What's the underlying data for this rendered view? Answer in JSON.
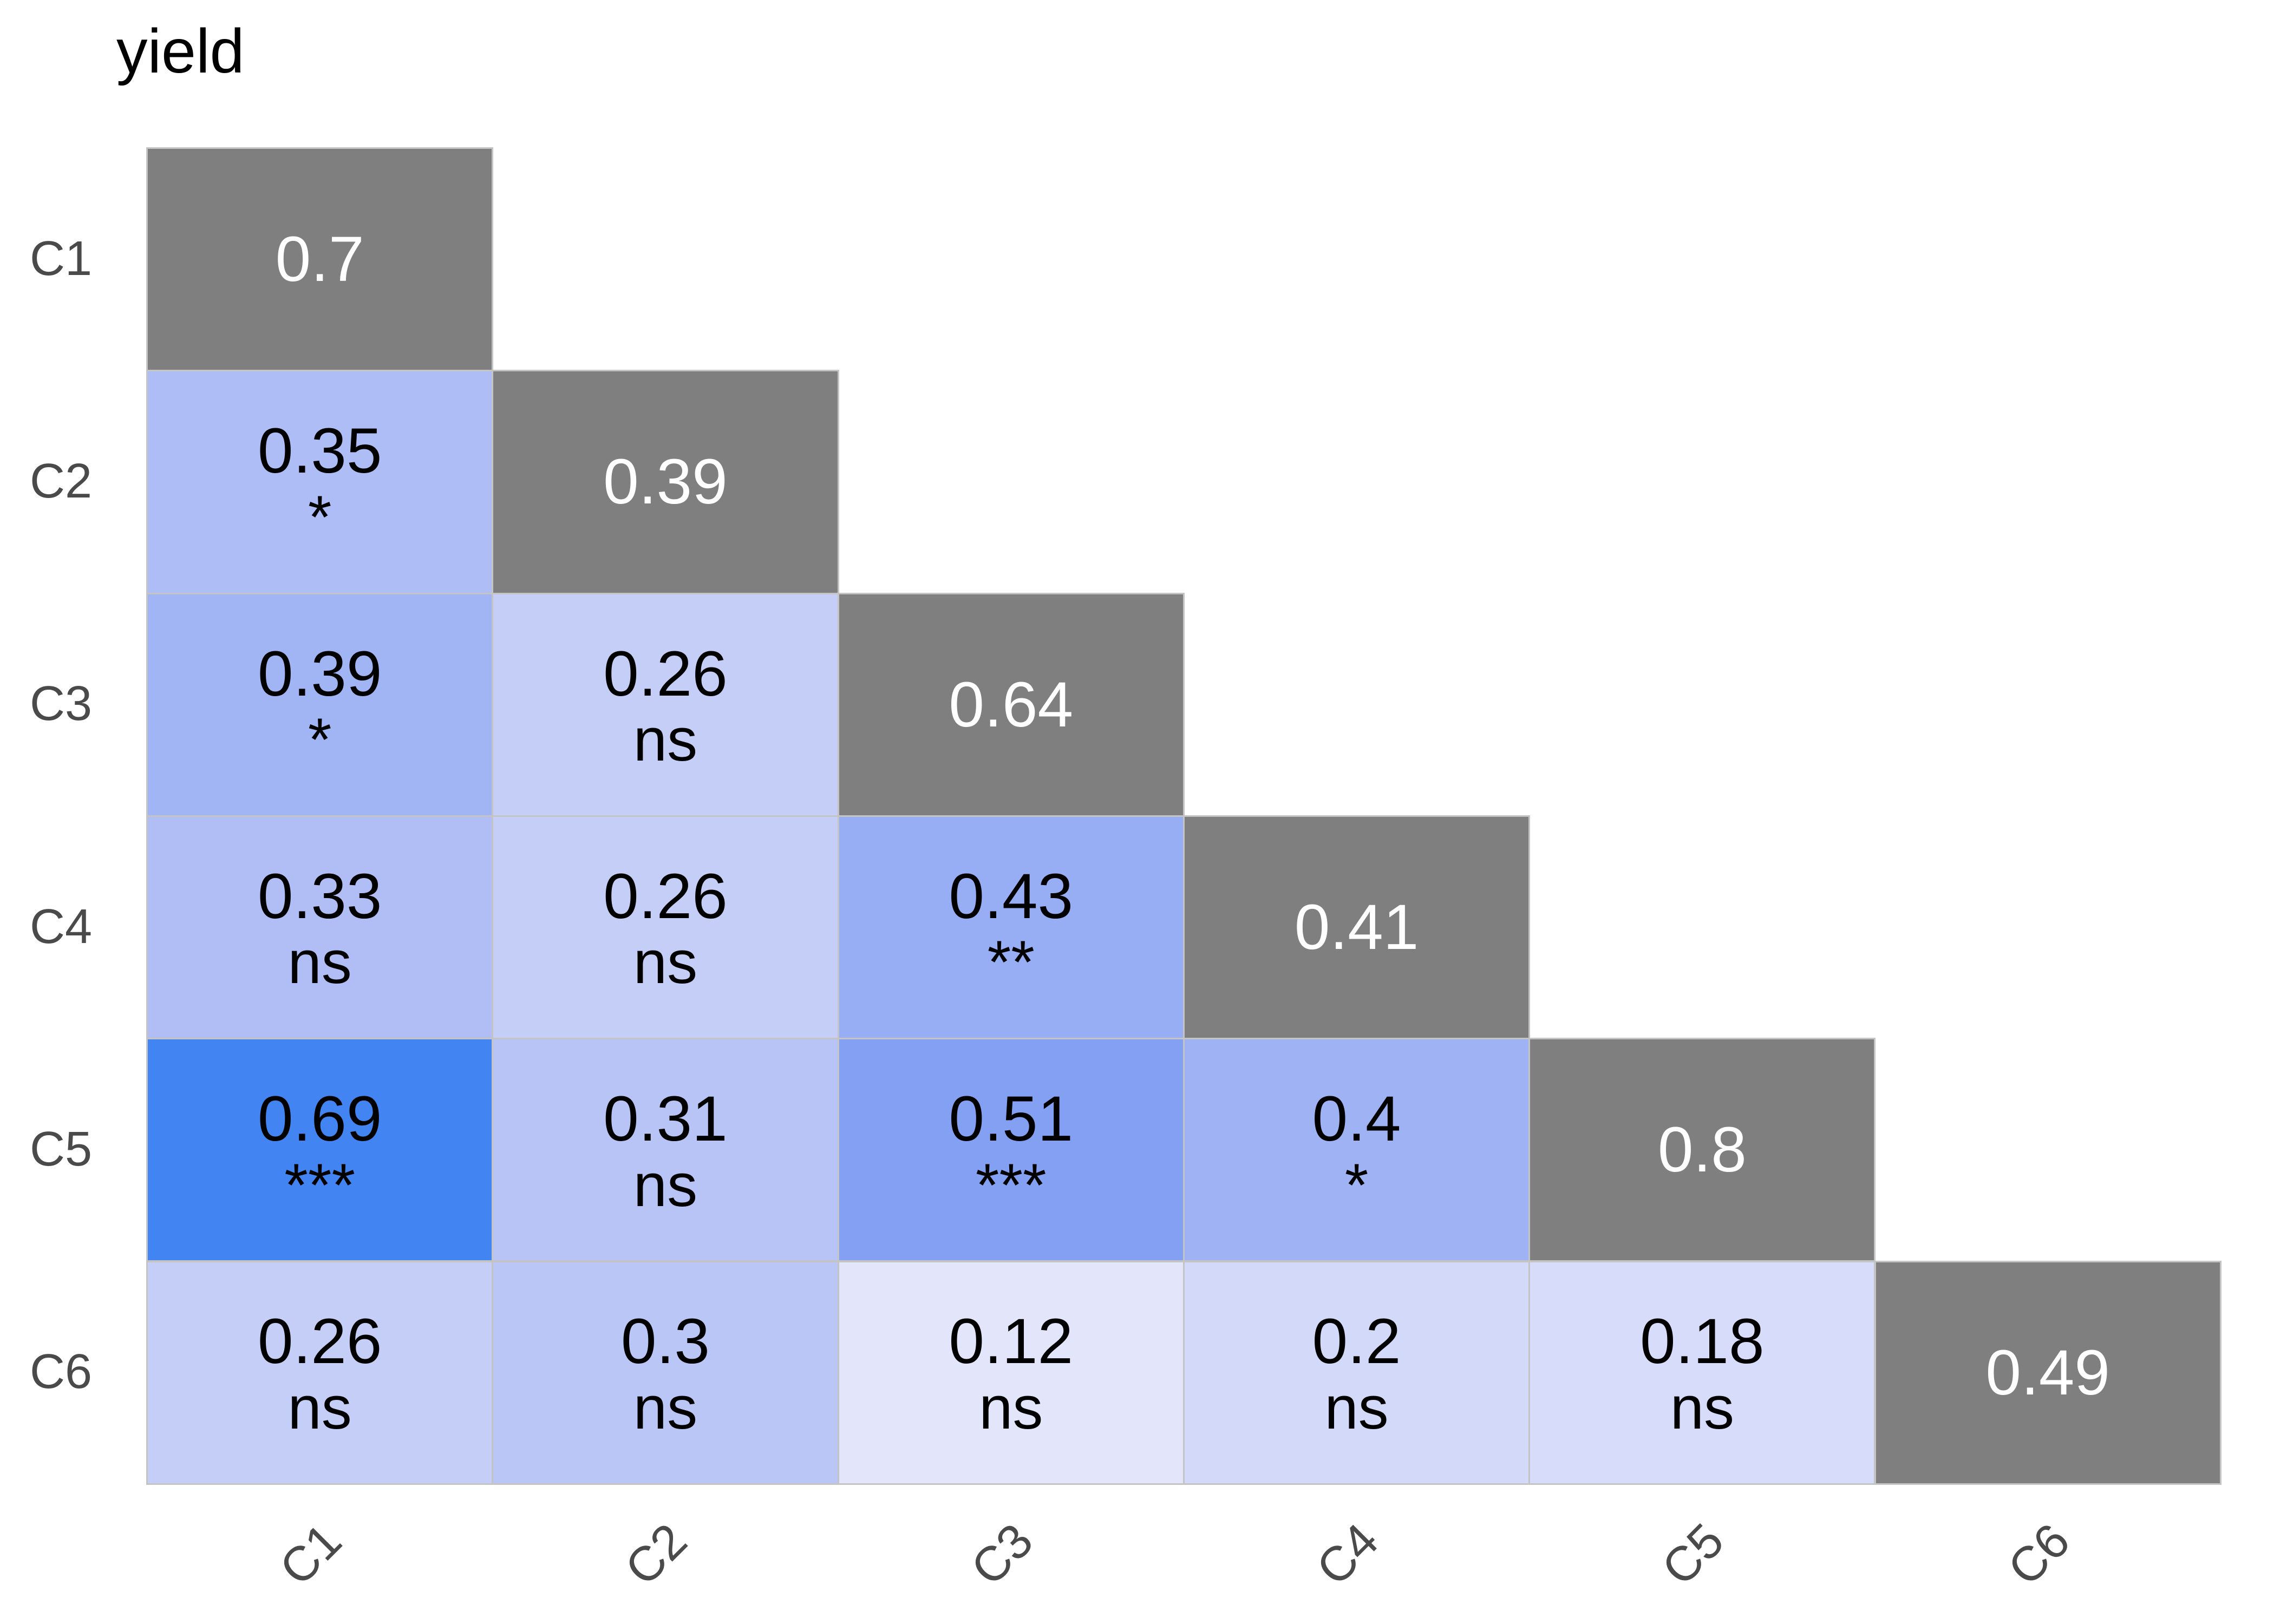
{
  "title": "yield",
  "colors": {
    "background": "#ffffff",
    "title_text": "#000000",
    "diagonal_fill": "#7f7f7f",
    "diagonal_text": "#ffffff",
    "cell_text": "#000000",
    "axis_text": "#4a4a4a",
    "grid_line": "#c4c4c4"
  },
  "chart_data": {
    "type": "heatmap",
    "title": "yield",
    "subtitle": "",
    "description": "Lower-triangular correlation matrix plot; diagonal cells are gray with white values, off-diagonal cells are shaded blue by correlation strength and annotated with significance codes (ns, *, **, ***).",
    "x_categories": [
      "C1",
      "C2",
      "C3",
      "C4",
      "C5",
      "C6"
    ],
    "y_categories": [
      "C1",
      "C2",
      "C3",
      "C4",
      "C5",
      "C6"
    ],
    "significance_codes": [
      "ns",
      "*",
      "**",
      "***"
    ],
    "legend_position": "none",
    "grid": "light gray cell borders",
    "cells": [
      {
        "row": "C1",
        "col": "C1",
        "value": 0.7,
        "display": "0.7",
        "significance": "",
        "diagonal": true,
        "fill": "#7f7f7f"
      },
      {
        "row": "C2",
        "col": "C1",
        "value": 0.35,
        "display": "0.35",
        "significance": "*",
        "diagonal": false,
        "fill": "#aebdf6"
      },
      {
        "row": "C2",
        "col": "C2",
        "value": 0.39,
        "display": "0.39",
        "significance": "",
        "diagonal": true,
        "fill": "#7f7f7f"
      },
      {
        "row": "C3",
        "col": "C1",
        "value": 0.39,
        "display": "0.39",
        "significance": "*",
        "diagonal": false,
        "fill": "#a1b4f4"
      },
      {
        "row": "C3",
        "col": "C2",
        "value": 0.26,
        "display": "0.26",
        "significance": "ns",
        "diagonal": false,
        "fill": "#c5cef7"
      },
      {
        "row": "C3",
        "col": "C3",
        "value": 0.64,
        "display": "0.64",
        "significance": "",
        "diagonal": true,
        "fill": "#7f7f7f"
      },
      {
        "row": "C4",
        "col": "C1",
        "value": 0.33,
        "display": "0.33",
        "significance": "ns",
        "diagonal": false,
        "fill": "#b0bef5"
      },
      {
        "row": "C4",
        "col": "C2",
        "value": 0.26,
        "display": "0.26",
        "significance": "ns",
        "diagonal": false,
        "fill": "#c5cef7"
      },
      {
        "row": "C4",
        "col": "C3",
        "value": 0.43,
        "display": "0.43",
        "significance": "**",
        "diagonal": false,
        "fill": "#97adf4"
      },
      {
        "row": "C4",
        "col": "C4",
        "value": 0.41,
        "display": "0.41",
        "significance": "",
        "diagonal": true,
        "fill": "#7f7f7f"
      },
      {
        "row": "C5",
        "col": "C1",
        "value": 0.69,
        "display": "0.69",
        "significance": "***",
        "diagonal": false,
        "fill": "#4285f2"
      },
      {
        "row": "C5",
        "col": "C2",
        "value": 0.31,
        "display": "0.31",
        "significance": "ns",
        "diagonal": false,
        "fill": "#b8c4f6"
      },
      {
        "row": "C5",
        "col": "C3",
        "value": 0.51,
        "display": "0.51",
        "significance": "***",
        "diagonal": false,
        "fill": "#84a0f3"
      },
      {
        "row": "C5",
        "col": "C4",
        "value": 0.4,
        "display": "0.4",
        "significance": "*",
        "diagonal": false,
        "fill": "#9fb3f4"
      },
      {
        "row": "C5",
        "col": "C5",
        "value": 0.8,
        "display": "0.8",
        "significance": "",
        "diagonal": true,
        "fill": "#7f7f7f"
      },
      {
        "row": "C6",
        "col": "C1",
        "value": 0.26,
        "display": "0.26",
        "significance": "ns",
        "diagonal": false,
        "fill": "#c5cef7"
      },
      {
        "row": "C6",
        "col": "C2",
        "value": 0.3,
        "display": "0.3",
        "significance": "ns",
        "diagonal": false,
        "fill": "#bac6f6"
      },
      {
        "row": "C6",
        "col": "C3",
        "value": 0.12,
        "display": "0.12",
        "significance": "ns",
        "diagonal": false,
        "fill": "#e3e6fb"
      },
      {
        "row": "C6",
        "col": "C4",
        "value": 0.2,
        "display": "0.2",
        "significance": "ns",
        "diagonal": false,
        "fill": "#d3d9f9"
      },
      {
        "row": "C6",
        "col": "C5",
        "value": 0.18,
        "display": "0.18",
        "significance": "ns",
        "diagonal": false,
        "fill": "#d7dcfa"
      },
      {
        "row": "C6",
        "col": "C6",
        "value": 0.49,
        "display": "0.49",
        "significance": "",
        "diagonal": true,
        "fill": "#7f7f7f"
      }
    ]
  }
}
